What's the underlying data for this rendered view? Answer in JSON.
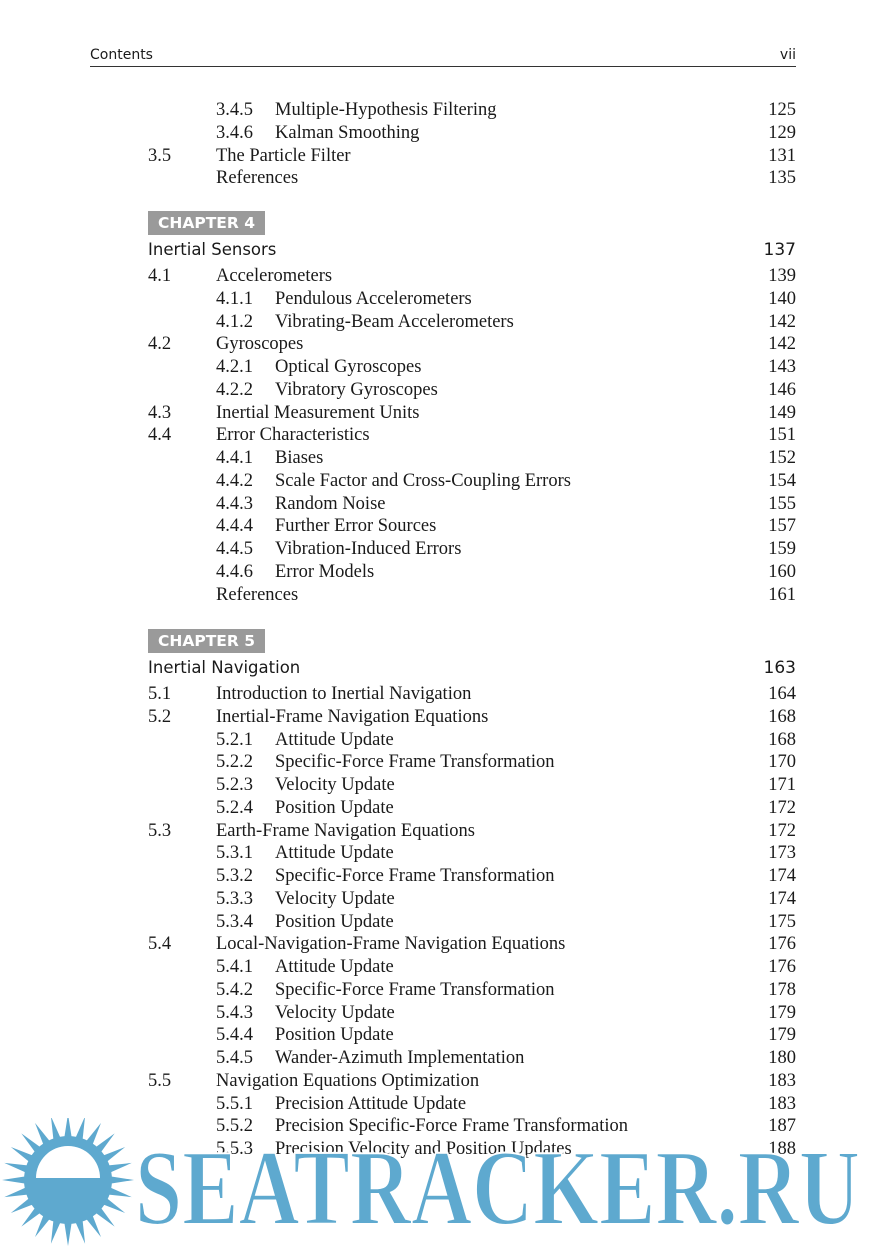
{
  "header": {
    "section": "Contents",
    "page": "vii"
  },
  "top_entries": [
    {
      "num": "3.4.5",
      "title": "Multiple-Hypothesis Filtering",
      "page": "125",
      "level": 2
    },
    {
      "num": "3.4.6",
      "title": "Kalman Smoothing",
      "page": "129",
      "level": 2
    },
    {
      "num": "3.5",
      "title": "The Particle Filter",
      "page": "131",
      "level": 1
    },
    {
      "num": "",
      "title": "References",
      "page": "135",
      "level": 1
    }
  ],
  "chapters": [
    {
      "label": "CHAPTER 4",
      "title": "Inertial Sensors",
      "page": "137",
      "entries": [
        {
          "num": "4.1",
          "title": "Accelerometers",
          "page": "139",
          "level": 1
        },
        {
          "num": "4.1.1",
          "title": "Pendulous Accelerometers",
          "page": "140",
          "level": 2
        },
        {
          "num": "4.1.2",
          "title": "Vibrating-Beam Accelerometers",
          "page": "142",
          "level": 2
        },
        {
          "num": "4.2",
          "title": "Gyroscopes",
          "page": "142",
          "level": 1
        },
        {
          "num": "4.2.1",
          "title": "Optical Gyroscopes",
          "page": "143",
          "level": 2
        },
        {
          "num": "4.2.2",
          "title": "Vibratory Gyroscopes",
          "page": "146",
          "level": 2
        },
        {
          "num": "4.3",
          "title": "Inertial Measurement Units",
          "page": "149",
          "level": 1
        },
        {
          "num": "4.4",
          "title": "Error Characteristics",
          "page": "151",
          "level": 1
        },
        {
          "num": "4.4.1",
          "title": "Biases",
          "page": "152",
          "level": 2
        },
        {
          "num": "4.4.2",
          "title": "Scale Factor and Cross-Coupling Errors",
          "page": "154",
          "level": 2
        },
        {
          "num": "4.4.3",
          "title": "Random Noise",
          "page": "155",
          "level": 2
        },
        {
          "num": "4.4.4",
          "title": "Further Error Sources",
          "page": "157",
          "level": 2
        },
        {
          "num": "4.4.5",
          "title": "Vibration-Induced Errors",
          "page": "159",
          "level": 2
        },
        {
          "num": "4.4.6",
          "title": "Error Models",
          "page": "160",
          "level": 2
        },
        {
          "num": "",
          "title": "References",
          "page": "161",
          "level": 1
        }
      ]
    },
    {
      "label": "CHAPTER 5",
      "title": "Inertial Navigation",
      "page": "163",
      "entries": [
        {
          "num": "5.1",
          "title": "Introduction to Inertial Navigation",
          "page": "164",
          "level": 1
        },
        {
          "num": "5.2",
          "title": "Inertial-Frame Navigation Equations",
          "page": "168",
          "level": 1
        },
        {
          "num": "5.2.1",
          "title": "Attitude Update",
          "page": "168",
          "level": 2
        },
        {
          "num": "5.2.2",
          "title": "Specific-Force Frame Transformation",
          "page": "170",
          "level": 2
        },
        {
          "num": "5.2.3",
          "title": "Velocity Update",
          "page": "171",
          "level": 2
        },
        {
          "num": "5.2.4",
          "title": "Position Update",
          "page": "172",
          "level": 2
        },
        {
          "num": "5.3",
          "title": "Earth-Frame Navigation Equations",
          "page": "172",
          "level": 1
        },
        {
          "num": "5.3.1",
          "title": "Attitude Update",
          "page": "173",
          "level": 2
        },
        {
          "num": "5.3.2",
          "title": "Specific-Force Frame Transformation",
          "page": "174",
          "level": 2
        },
        {
          "num": "5.3.3",
          "title": "Velocity Update",
          "page": "174",
          "level": 2
        },
        {
          "num": "5.3.4",
          "title": "Position Update",
          "page": "175",
          "level": 2
        },
        {
          "num": "5.4",
          "title": "Local-Navigation-Frame Navigation Equations",
          "page": "176",
          "level": 1
        },
        {
          "num": "5.4.1",
          "title": "Attitude Update",
          "page": "176",
          "level": 2
        },
        {
          "num": "5.4.2",
          "title": "Specific-Force Frame Transformation",
          "page": "178",
          "level": 2
        },
        {
          "num": "5.4.3",
          "title": "Velocity Update",
          "page": "179",
          "level": 2
        },
        {
          "num": "5.4.4",
          "title": "Position Update",
          "page": "179",
          "level": 2
        },
        {
          "num": "5.4.5",
          "title": "Wander-Azimuth Implementation",
          "page": "180",
          "level": 2
        },
        {
          "num": "5.5",
          "title": "Navigation Equations Optimization",
          "page": "183",
          "level": 1
        },
        {
          "num": "5.5.1",
          "title": "Precision Attitude Update",
          "page": "183",
          "level": 2
        },
        {
          "num": "5.5.2",
          "title": "Precision Specific-Force Frame Transformation",
          "page": "187",
          "level": 2
        },
        {
          "num": "5.5.3",
          "title": "Precision Velocity and Position Updates",
          "page": "188",
          "level": 2
        }
      ]
    }
  ],
  "watermark": {
    "text": "SEATRACKER.RU",
    "color": "#5ea9cf"
  },
  "colors": {
    "chapter_label_bg": "#9a9a9a"
  }
}
